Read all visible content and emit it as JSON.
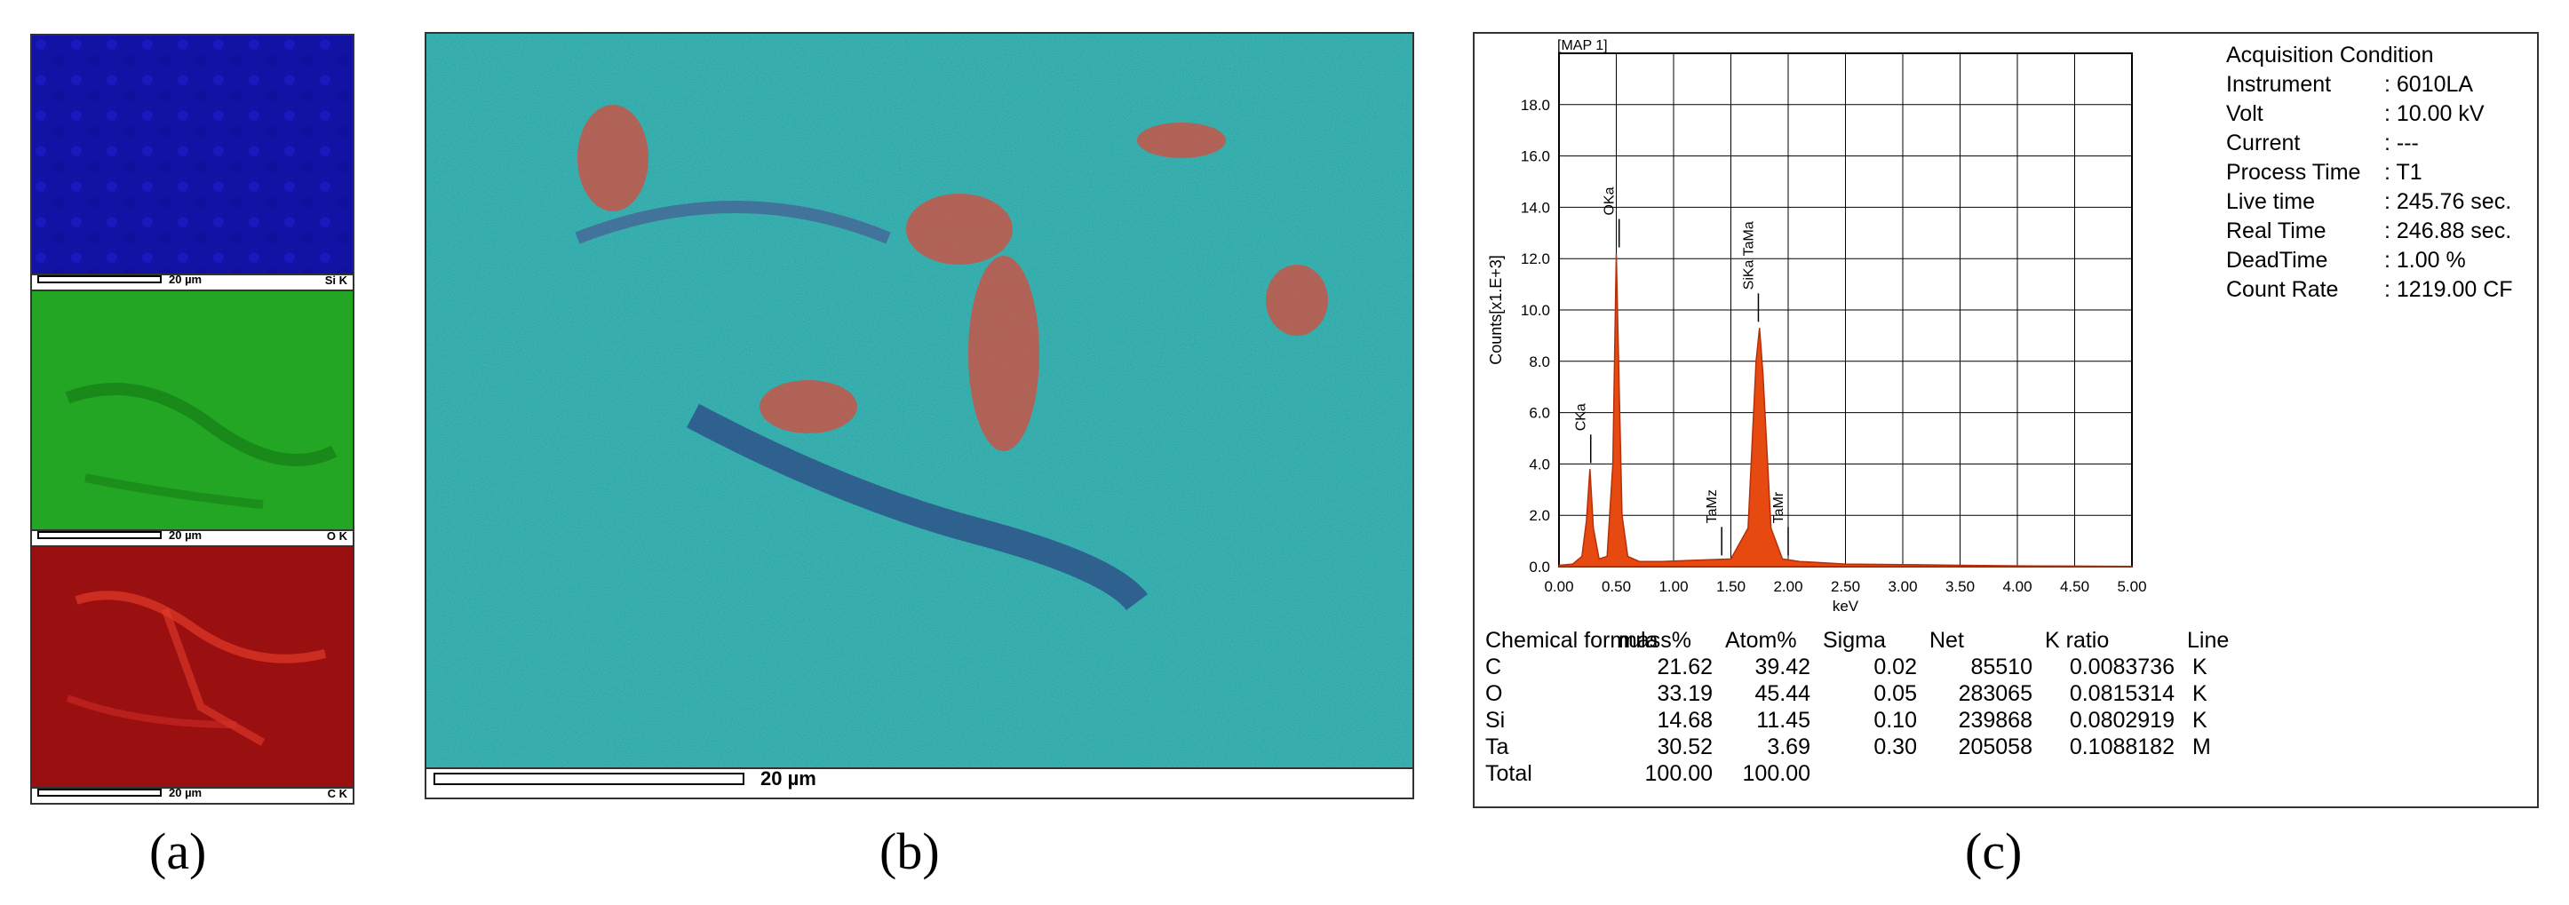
{
  "panels": {
    "a": {
      "label": "(a)",
      "maps": [
        {
          "element": "Si K",
          "scale": "20 µm",
          "color": "#1414b4"
        },
        {
          "element": "O K",
          "scale": "20 µm",
          "color": "#23a623"
        },
        {
          "element": "C K",
          "scale": "20 µm",
          "color": "#b01414"
        }
      ]
    },
    "b": {
      "label": "(b)",
      "scale": "20 µm"
    },
    "c": {
      "label": "(c)"
    }
  },
  "acquisition": {
    "title": "Acquisition Condition",
    "rows": [
      {
        "key": "Instrument",
        "value": ": 6010LA"
      },
      {
        "key": "Volt",
        "value": ": 10.00 kV"
      },
      {
        "key": "Current",
        "value": ": ---"
      },
      {
        "key": "Process Time",
        "value": ": T1"
      },
      {
        "key": "Live time",
        "value": ": 245.76 sec."
      },
      {
        "key": "Real Time",
        "value": ": 246.88 sec."
      },
      {
        "key": "DeadTime",
        "value": ": 1.00 %"
      },
      {
        "key": "Count Rate",
        "value": ": 1219.00 CF"
      }
    ]
  },
  "composition": {
    "headers": [
      "Chemical formula",
      "mass%",
      "Atom%",
      "Sigma",
      "Net",
      "K ratio",
      "Line"
    ],
    "rows": [
      [
        "C",
        "21.62",
        "39.42",
        "0.02",
        "85510",
        "0.0083736",
        "K"
      ],
      [
        "O",
        "33.19",
        "45.44",
        "0.05",
        "283065",
        "0.0815314",
        "K"
      ],
      [
        "Si",
        "14.68",
        "11.45",
        "0.10",
        "239868",
        "0.0802919",
        "K"
      ],
      [
        "Ta",
        "30.52",
        "3.69",
        "0.30",
        "205058",
        "0.1088182",
        "M"
      ],
      [
        "Total",
        "100.00",
        "100.00",
        "",
        "",
        "",
        ""
      ]
    ]
  },
  "chart_data": {
    "type": "area",
    "title": "[MAP 1]",
    "xlabel": "keV",
    "ylabel": "Counts[x1.E+3]",
    "xlim": [
      0,
      5
    ],
    "ylim": [
      0,
      20
    ],
    "x_ticks": [
      "0.00",
      "0.50",
      "1.00",
      "1.50",
      "2.00",
      "2.50",
      "3.00",
      "3.50",
      "4.00",
      "4.50",
      "5.00"
    ],
    "y_ticks": [
      "0.0",
      "2.0",
      "4.0",
      "6.0",
      "8.0",
      "10.0",
      "12.0",
      "14.0",
      "16.0",
      "18.0"
    ],
    "grid": true,
    "color": "#e64a10",
    "series": [
      {
        "x": [
          0.0,
          0.12,
          0.2,
          0.24,
          0.27,
          0.3,
          0.35,
          0.42,
          0.47,
          0.5,
          0.52,
          0.55,
          0.6,
          0.7,
          0.9,
          1.2,
          1.5,
          1.65,
          1.72,
          1.75,
          1.78,
          1.85,
          1.95,
          2.1,
          2.5,
          3.0,
          3.5,
          4.0,
          4.5,
          5.0
        ],
        "y": [
          0.05,
          0.1,
          0.4,
          1.8,
          3.8,
          1.5,
          0.3,
          0.4,
          4.0,
          12.2,
          8.0,
          2.0,
          0.4,
          0.2,
          0.2,
          0.25,
          0.3,
          1.5,
          8.0,
          9.3,
          7.5,
          1.5,
          0.3,
          0.2,
          0.1,
          0.08,
          0.05,
          0.03,
          0.02,
          0.01
        ]
      }
    ],
    "annotations": [
      {
        "label": "CKa",
        "x": 0.277,
        "y": 3.9
      },
      {
        "label": "OKa",
        "x": 0.525,
        "y": 12.3
      },
      {
        "label": "TaMz",
        "x": 1.42,
        "y": 0.3
      },
      {
        "label": "SiKa TaMa",
        "x": 1.74,
        "y": 9.4
      },
      {
        "label": "TaMr",
        "x": 2.0,
        "y": 0.3
      }
    ]
  }
}
